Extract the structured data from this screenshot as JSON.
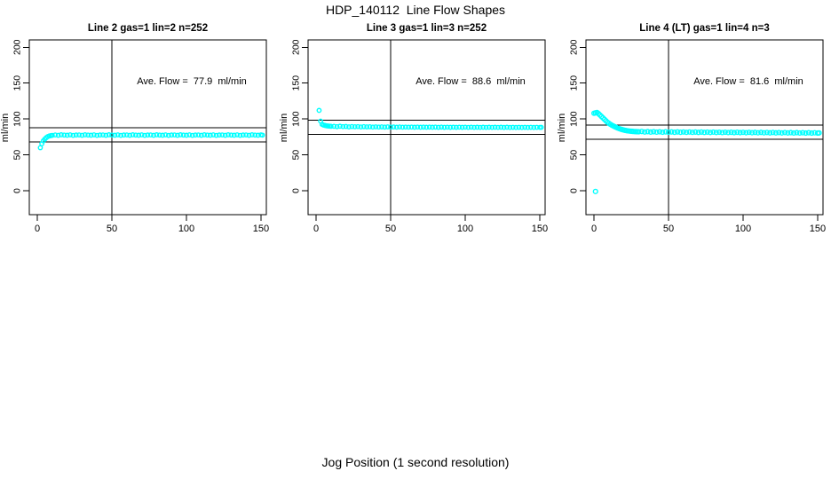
{
  "figure": {
    "title": "HDP_140112  Line Flow Shapes",
    "xlabel": "Jog Position (1 second resolution)",
    "background_color": "#ffffff",
    "text_color": "#000000"
  },
  "chart_data": [
    {
      "type": "scatter",
      "title": "Line 2 gas=1 lin=2 n=252",
      "annotation": "Ave. Flow =  77.9  ml/min",
      "ave_flow_ml_min": 77.9,
      "n": 252,
      "ylabel": "ml/min",
      "xlim": [
        -5.4,
        153.6
      ],
      "ylim": [
        -33.3,
        210.2
      ],
      "x_ticks": [
        0,
        50,
        100,
        150
      ],
      "y_ticks": [
        0,
        50,
        100,
        150,
        200
      ],
      "vline_x": 50,
      "hlines": [
        87.9,
        67.9
      ],
      "grid": false,
      "marker": "open-circle",
      "marker_color": "#00ffff",
      "marker_radius": 2.2,
      "points": [
        [
          2,
          60
        ],
        [
          3,
          65.5
        ],
        [
          4,
          69.5
        ],
        [
          5,
          72
        ],
        [
          6,
          74
        ],
        [
          7,
          75.5
        ],
        [
          8,
          76.3
        ],
        [
          9,
          76.8
        ],
        [
          10,
          77.2
        ],
        [
          12,
          77.8
        ],
        [
          14,
          77.3
        ],
        [
          16,
          78
        ],
        [
          18,
          77.6
        ],
        [
          20,
          77.4
        ],
        [
          22,
          77.9
        ],
        [
          24,
          77.2
        ],
        [
          26,
          77.7
        ],
        [
          28,
          77.8
        ],
        [
          30,
          77.3
        ],
        [
          32,
          78
        ],
        [
          34,
          77.6
        ],
        [
          36,
          77.4
        ],
        [
          38,
          77.9
        ],
        [
          40,
          77.2
        ],
        [
          42,
          77.7
        ],
        [
          44,
          77.8
        ],
        [
          46,
          77.3
        ],
        [
          48,
          78
        ],
        [
          50,
          77.6
        ],
        [
          52,
          77.4
        ],
        [
          54,
          77.9
        ],
        [
          56,
          77.2
        ],
        [
          58,
          77.7
        ],
        [
          60,
          77.8
        ],
        [
          62,
          77.3
        ],
        [
          64,
          78
        ],
        [
          66,
          77.6
        ],
        [
          68,
          77.4
        ],
        [
          70,
          77.9
        ],
        [
          72,
          77.2
        ],
        [
          74,
          77.7
        ],
        [
          76,
          77.8
        ],
        [
          78,
          77.3
        ],
        [
          80,
          78
        ],
        [
          82,
          77.6
        ],
        [
          84,
          77.4
        ],
        [
          86,
          77.9
        ],
        [
          88,
          77.2
        ],
        [
          90,
          77.7
        ],
        [
          92,
          77.8
        ],
        [
          94,
          77.3
        ],
        [
          96,
          78
        ],
        [
          98,
          77.6
        ],
        [
          100,
          77.4
        ],
        [
          102,
          77.9
        ],
        [
          104,
          77.2
        ],
        [
          106,
          77.7
        ],
        [
          108,
          77.8
        ],
        [
          110,
          77.3
        ],
        [
          112,
          78
        ],
        [
          114,
          77.6
        ],
        [
          116,
          77.4
        ],
        [
          118,
          77.9
        ],
        [
          120,
          77.2
        ],
        [
          122,
          77.7
        ],
        [
          124,
          77.8
        ],
        [
          126,
          77.3
        ],
        [
          128,
          78
        ],
        [
          130,
          77.6
        ],
        [
          132,
          77.4
        ],
        [
          134,
          77.9
        ],
        [
          136,
          77.2
        ],
        [
          138,
          77.7
        ],
        [
          140,
          77.8
        ],
        [
          142,
          77.3
        ],
        [
          144,
          78
        ],
        [
          146,
          77.6
        ],
        [
          148,
          77.4
        ],
        [
          150,
          77.9
        ],
        [
          151,
          77.5
        ]
      ]
    },
    {
      "type": "scatter",
      "title": "Line 3 gas=1 lin=3 n=252",
      "annotation": "Ave. Flow =  88.6  ml/min",
      "ave_flow_ml_min": 88.6,
      "n": 252,
      "ylabel": "ml/min",
      "xlim": [
        -5.4,
        153.6
      ],
      "ylim": [
        -33.3,
        210.2
      ],
      "x_ticks": [
        0,
        50,
        100,
        150
      ],
      "y_ticks": [
        0,
        50,
        100,
        150,
        200
      ],
      "vline_x": 50,
      "hlines": [
        98.6,
        78.6
      ],
      "grid": false,
      "marker": "open-circle",
      "marker_color": "#00ffff",
      "marker_radius": 2.2,
      "points": [
        [
          2,
          112
        ],
        [
          3,
          97
        ],
        [
          4,
          92.5
        ],
        [
          5,
          91.5
        ],
        [
          6,
          91
        ],
        [
          7,
          90.5
        ],
        [
          8,
          90.2
        ],
        [
          9,
          90
        ],
        [
          10,
          89.8
        ],
        [
          12,
          89.8
        ],
        [
          14,
          89.3
        ],
        [
          16,
          89.9
        ],
        [
          18,
          89.4
        ],
        [
          20,
          89.6
        ],
        [
          22,
          89
        ],
        [
          24,
          89.5
        ],
        [
          26,
          89.2
        ],
        [
          28,
          89.4
        ],
        [
          30,
          88.9
        ],
        [
          32,
          89.3
        ],
        [
          34,
          89
        ],
        [
          36,
          89.2
        ],
        [
          38,
          88.8
        ],
        [
          40,
          89.1
        ],
        [
          42,
          88.8
        ],
        [
          44,
          89
        ],
        [
          46,
          88.7
        ],
        [
          48,
          89
        ],
        [
          50,
          88.7
        ],
        [
          52,
          88.9
        ],
        [
          54,
          88.6
        ],
        [
          56,
          88.9
        ],
        [
          58,
          88.6
        ],
        [
          60,
          88.8
        ],
        [
          62,
          88.6
        ],
        [
          64,
          88.8
        ],
        [
          66,
          88.5
        ],
        [
          68,
          88.8
        ],
        [
          70,
          88.5
        ],
        [
          72,
          88.7
        ],
        [
          74,
          88.5
        ],
        [
          76,
          88.7
        ],
        [
          78,
          88.5
        ],
        [
          80,
          88.7
        ],
        [
          82,
          88.4
        ],
        [
          84,
          88.7
        ],
        [
          86,
          88.4
        ],
        [
          88,
          88.6
        ],
        [
          90,
          88.4
        ],
        [
          92,
          88.6
        ],
        [
          94,
          88.4
        ],
        [
          96,
          88.6
        ],
        [
          98,
          88.4
        ],
        [
          100,
          88.6
        ],
        [
          102,
          88.3
        ],
        [
          104,
          88.6
        ],
        [
          106,
          88.3
        ],
        [
          108,
          88.5
        ],
        [
          110,
          88.3
        ],
        [
          112,
          88.5
        ],
        [
          114,
          88.3
        ],
        [
          116,
          88.5
        ],
        [
          118,
          88.3
        ],
        [
          120,
          88.5
        ],
        [
          122,
          88.3
        ],
        [
          124,
          88.5
        ],
        [
          126,
          88.2
        ],
        [
          128,
          88.5
        ],
        [
          130,
          88.2
        ],
        [
          132,
          88.4
        ],
        [
          134,
          88.2
        ],
        [
          136,
          88.4
        ],
        [
          138,
          88.2
        ],
        [
          140,
          88.4
        ],
        [
          142,
          88.2
        ],
        [
          144,
          88.4
        ],
        [
          146,
          88.2
        ],
        [
          148,
          88.4
        ],
        [
          150,
          88.3
        ],
        [
          151,
          88.4
        ]
      ]
    },
    {
      "type": "scatter",
      "title": "Line 4 (LT) gas=1 lin=4 n=3",
      "annotation": "Ave. Flow =  81.6  ml/min",
      "ave_flow_ml_min": 81.6,
      "n": 3,
      "ylabel": "ml/min",
      "xlim": [
        -5.4,
        153.6
      ],
      "ylim": [
        -33.3,
        210.2
      ],
      "x_ticks": [
        0,
        50,
        100,
        150
      ],
      "y_ticks": [
        0,
        50,
        100,
        150,
        200
      ],
      "vline_x": 50,
      "hlines": [
        91.6,
        71.6
      ],
      "grid": false,
      "marker": "open-circle",
      "marker_color": "#00ffff",
      "marker_radius": 2.4,
      "points": [
        [
          1,
          -1
        ],
        [
          0,
          108
        ],
        [
          1,
          108.5
        ],
        [
          2,
          109
        ],
        [
          3,
          107.5
        ],
        [
          4,
          105.5
        ],
        [
          5,
          103.5
        ],
        [
          6,
          101.5
        ],
        [
          7,
          99.5
        ],
        [
          8,
          97.5
        ],
        [
          9,
          95.5
        ],
        [
          10,
          94
        ],
        [
          11,
          92.5
        ],
        [
          12,
          91.3
        ],
        [
          13,
          90.2
        ],
        [
          14,
          89.2
        ],
        [
          15,
          88.2
        ],
        [
          16,
          87.3
        ],
        [
          17,
          86.5
        ],
        [
          18,
          85.8
        ],
        [
          19,
          85.2
        ],
        [
          20,
          84.6
        ],
        [
          21,
          84.1
        ],
        [
          22,
          83.7
        ],
        [
          23,
          83.4
        ],
        [
          24,
          83.1
        ],
        [
          25,
          82.9
        ],
        [
          26,
          82.7
        ],
        [
          27,
          82.5
        ],
        [
          28,
          82.4
        ],
        [
          29,
          82.3
        ],
        [
          30,
          82.2
        ],
        [
          32,
          82.6
        ],
        [
          34,
          81.9
        ],
        [
          36,
          82.4
        ],
        [
          38,
          81.8
        ],
        [
          40,
          82.3
        ],
        [
          42,
          81.7
        ],
        [
          44,
          82.2
        ],
        [
          46,
          81.6
        ],
        [
          48,
          82.1
        ],
        [
          50,
          81.6
        ],
        [
          52,
          82
        ],
        [
          54,
          81.5
        ],
        [
          56,
          82
        ],
        [
          58,
          81.5
        ],
        [
          60,
          81.9
        ],
        [
          62,
          81.4
        ],
        [
          64,
          81.9
        ],
        [
          66,
          81.4
        ],
        [
          68,
          81.8
        ],
        [
          70,
          81.3
        ],
        [
          72,
          81.8
        ],
        [
          74,
          81.3
        ],
        [
          76,
          81.7
        ],
        [
          78,
          81.2
        ],
        [
          80,
          81.7
        ],
        [
          82,
          81.2
        ],
        [
          84,
          81.6
        ],
        [
          86,
          81.1
        ],
        [
          88,
          81.6
        ],
        [
          90,
          81.1
        ],
        [
          92,
          81.5
        ],
        [
          94,
          81
        ],
        [
          96,
          81.5
        ],
        [
          98,
          81
        ],
        [
          100,
          81.4
        ],
        [
          102,
          80.9
        ],
        [
          104,
          81.4
        ],
        [
          106,
          80.9
        ],
        [
          108,
          81.3
        ],
        [
          110,
          80.8
        ],
        [
          112,
          81.3
        ],
        [
          114,
          80.8
        ],
        [
          116,
          81.2
        ],
        [
          118,
          80.7
        ],
        [
          120,
          81.2
        ],
        [
          122,
          80.7
        ],
        [
          124,
          81.1
        ],
        [
          126,
          80.6
        ],
        [
          128,
          81.1
        ],
        [
          130,
          80.6
        ],
        [
          132,
          81
        ],
        [
          134,
          80.5
        ],
        [
          136,
          81
        ],
        [
          138,
          80.5
        ],
        [
          140,
          80.9
        ],
        [
          142,
          80.4
        ],
        [
          144,
          80.9
        ],
        [
          146,
          80.4
        ],
        [
          148,
          80.8
        ],
        [
          150,
          80.4
        ],
        [
          151,
          80.6
        ]
      ]
    }
  ]
}
